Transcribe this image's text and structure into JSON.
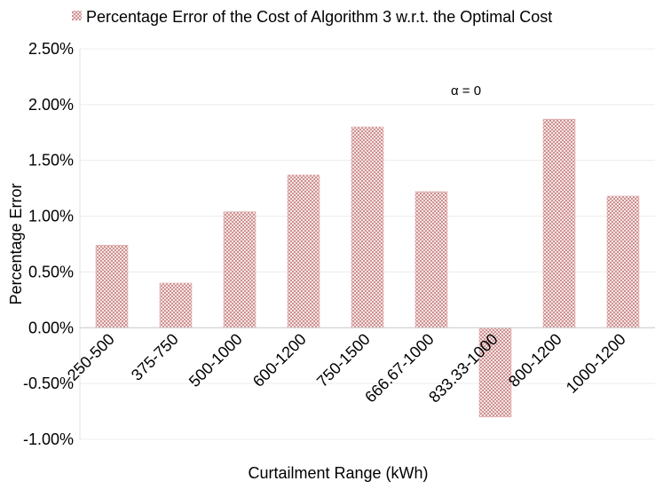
{
  "chart_data": {
    "type": "bar",
    "title": "",
    "legend": "Percentage Error of the  Cost of Algorithm 3 w.r.t. the Optimal Cost",
    "legend_position": "top",
    "annotation": "α = 0",
    "xlabel": "Curtailment Range (kWh)",
    "ylabel": "Percentage Error",
    "categories": [
      "250-500",
      "375-750",
      "500-1000",
      "600-1200",
      "750-1500",
      "666.67-1000",
      "833.33-1000",
      "800-1200",
      "1000-1200"
    ],
    "values": [
      0.74,
      0.4,
      1.04,
      1.37,
      1.8,
      1.22,
      -0.8,
      1.87,
      1.18
    ],
    "ylim": [
      -1.0,
      2.5
    ],
    "yticks": [
      -1.0,
      -0.5,
      0.0,
      0.5,
      1.0,
      1.5,
      2.0,
      2.5
    ],
    "ytick_labels": [
      "-1.00%",
      "-0.50%",
      "0.00%",
      "0.50%",
      "1.00%",
      "1.50%",
      "2.00%",
      "2.50%"
    ],
    "grid": true,
    "bar_color": "#c97f7f"
  }
}
